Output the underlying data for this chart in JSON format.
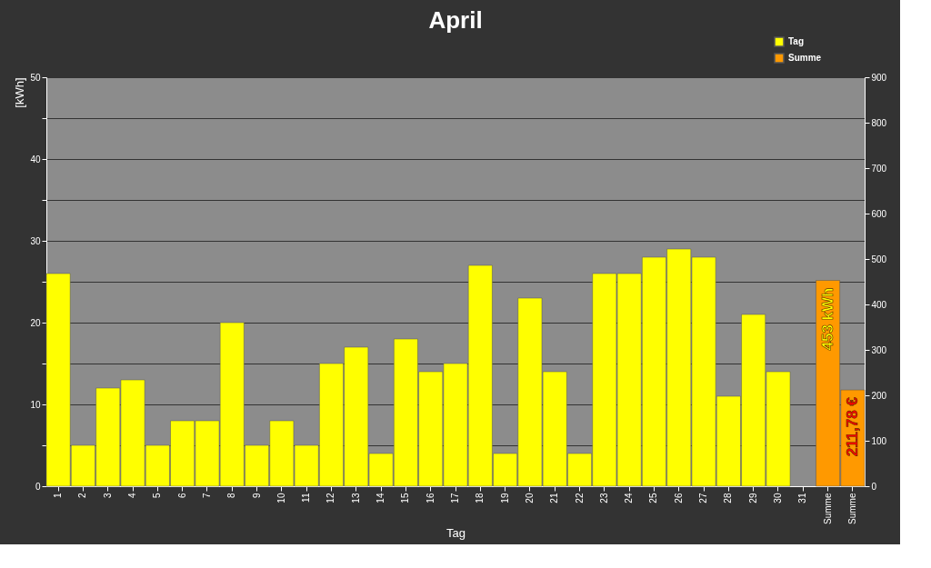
{
  "chart_data": {
    "type": "bar",
    "title": "April",
    "xlabel": "Tag",
    "ylabel": "[kWh]",
    "categories": [
      "1",
      "2",
      "3",
      "4",
      "5",
      "6",
      "7",
      "8",
      "9",
      "10",
      "11",
      "12",
      "13",
      "14",
      "15",
      "16",
      "17",
      "18",
      "19",
      "20",
      "21",
      "22",
      "23",
      "24",
      "25",
      "26",
      "27",
      "28",
      "29",
      "30",
      "31",
      "Summe",
      "Summe"
    ],
    "series": [
      {
        "name": "Tag",
        "color": "#ffff00",
        "values": [
          26,
          5,
          12,
          13,
          5,
          8,
          8,
          20,
          5,
          8,
          5,
          15,
          17,
          4,
          18,
          14,
          15,
          27,
          4,
          23,
          14,
          4,
          26,
          26,
          28,
          29,
          28,
          11,
          21,
          14,
          null,
          null,
          null
        ]
      },
      {
        "name": "Summe",
        "color": "#ff9900",
        "axis": "y2",
        "values": [
          null,
          null,
          null,
          null,
          null,
          null,
          null,
          null,
          null,
          null,
          null,
          null,
          null,
          null,
          null,
          null,
          null,
          null,
          null,
          null,
          null,
          null,
          null,
          null,
          null,
          null,
          null,
          null,
          null,
          null,
          null,
          453,
          211.78
        ],
        "value_labels": [
          null,
          null,
          null,
          null,
          null,
          null,
          null,
          null,
          null,
          null,
          null,
          null,
          null,
          null,
          null,
          null,
          null,
          null,
          null,
          null,
          null,
          null,
          null,
          null,
          null,
          null,
          null,
          null,
          null,
          null,
          null,
          "453 kWh",
          "211,78 €"
        ]
      }
    ],
    "ylim": [
      0,
      50
    ],
    "yticks": [
      0,
      {
        "value": 5,
        "label": null
      },
      10,
      {
        "value": 15,
        "label": null
      },
      20,
      {
        "value": 25,
        "label": null
      },
      30,
      {
        "value": 35,
        "label": null
      },
      40,
      {
        "value": 45,
        "label": null
      },
      50
    ],
    "y2lim": [
      0,
      900
    ],
    "y2ticks": [
      0,
      100,
      200,
      300,
      400,
      500,
      600,
      700,
      800,
      900
    ],
    "grid": "y",
    "legend": "top right"
  }
}
